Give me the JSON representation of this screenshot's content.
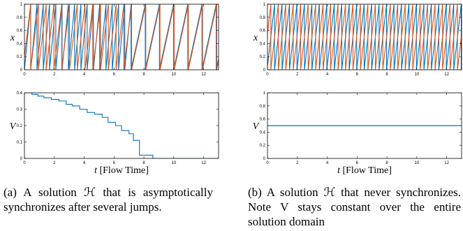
{
  "colors": {
    "blue": "#0072BD",
    "orange": "#D95319",
    "axis": "#000000"
  },
  "chart_data": [
    {
      "type": "line",
      "title": "",
      "xlabel": "",
      "ylabel": "x",
      "xlim": [
        0,
        13
      ],
      "ylim": [
        0,
        1
      ],
      "xticks": [
        "0",
        "2",
        "4",
        "6",
        "8",
        "10",
        "12"
      ],
      "yticks": [
        "0",
        "0.2",
        "0.4",
        "0.6",
        "0.8",
        "1"
      ],
      "series": [
        {
          "name": "",
          "color": "#0072BD",
          "start": 0.0,
          "period": [
            0.42,
            0.42,
            0.42,
            0.42,
            0.42,
            0.42,
            0.42,
            0.42,
            0.42,
            0.42,
            0.42,
            0.42,
            0.42,
            0.42,
            0.42,
            0.42,
            0.42,
            0.95,
            0.95,
            0.95,
            0.95,
            0.95,
            0.95,
            0.95
          ]
        },
        {
          "name": "",
          "color": "#D95319",
          "start": 0.2,
          "period": [
            0.52,
            0.52,
            0.52,
            0.52,
            0.52,
            0.52,
            0.52,
            0.52,
            0.52,
            0.52,
            0.52,
            0.52,
            0.52,
            0.52,
            0.95,
            0.95,
            0.95,
            0.95,
            0.95,
            0.95,
            0.95,
            0.95
          ]
        }
      ]
    },
    {
      "type": "line",
      "title": "",
      "xlabel": "t [Flow Time]",
      "ylabel": "V",
      "xlim": [
        0,
        13
      ],
      "ylim": [
        0,
        0.4
      ],
      "xticks": [
        "0",
        "2",
        "4",
        "6",
        "8",
        "10",
        "12"
      ],
      "yticks": [
        "0",
        "0.1",
        "0.2",
        "0.3",
        "0.4"
      ],
      "series": [
        {
          "name": "",
          "color": "#0072BD",
          "step": true,
          "x": [
            0,
            0.5,
            0.9,
            1.3,
            1.8,
            2.3,
            2.8,
            3.2,
            3.7,
            4.2,
            4.7,
            5.2,
            5.6,
            6.1,
            6.5,
            7.0,
            7.3,
            7.7,
            8.6,
            13
          ],
          "y": [
            0.4,
            0.39,
            0.38,
            0.37,
            0.36,
            0.35,
            0.33,
            0.32,
            0.3,
            0.28,
            0.27,
            0.25,
            0.22,
            0.2,
            0.17,
            0.15,
            0.11,
            0.02,
            0.0,
            0.0
          ]
        }
      ]
    },
    {
      "type": "line",
      "title": "",
      "xlabel": "",
      "ylabel": "x",
      "xlim": [
        0,
        13
      ],
      "ylim": [
        0,
        1
      ],
      "xticks": [
        "0",
        "2",
        "4",
        "6",
        "8",
        "10",
        "12"
      ],
      "yticks": [
        "0",
        "0.2",
        "0.4",
        "0.6",
        "0.8",
        "1"
      ],
      "series": [
        {
          "name": "",
          "color": "#0072BD",
          "start": 0.05,
          "period_const": 0.5
        },
        {
          "name": "",
          "color": "#D95319",
          "start": 0.55,
          "period_const": 0.5
        }
      ]
    },
    {
      "type": "line",
      "title": "",
      "xlabel": "t [Flow Time]",
      "ylabel": "V",
      "xlim": [
        0,
        13
      ],
      "ylim": [
        0,
        1
      ],
      "xticks": [
        "0",
        "2",
        "4",
        "6",
        "8",
        "10",
        "12"
      ],
      "yticks": [
        "0",
        "0.2",
        "0.4",
        "0.6",
        "0.8",
        "1"
      ],
      "series": [
        {
          "name": "",
          "color": "#0072BD",
          "x": [
            0,
            13
          ],
          "y": [
            0.5,
            0.5
          ]
        }
      ]
    }
  ],
  "captions": {
    "a": "(a) A solution ℋ that is asymptotically synchronizes after several jumps.",
    "b": "(b) A solution ℋ that never synchronizes. Note V stays constant over the entire solution domain"
  }
}
